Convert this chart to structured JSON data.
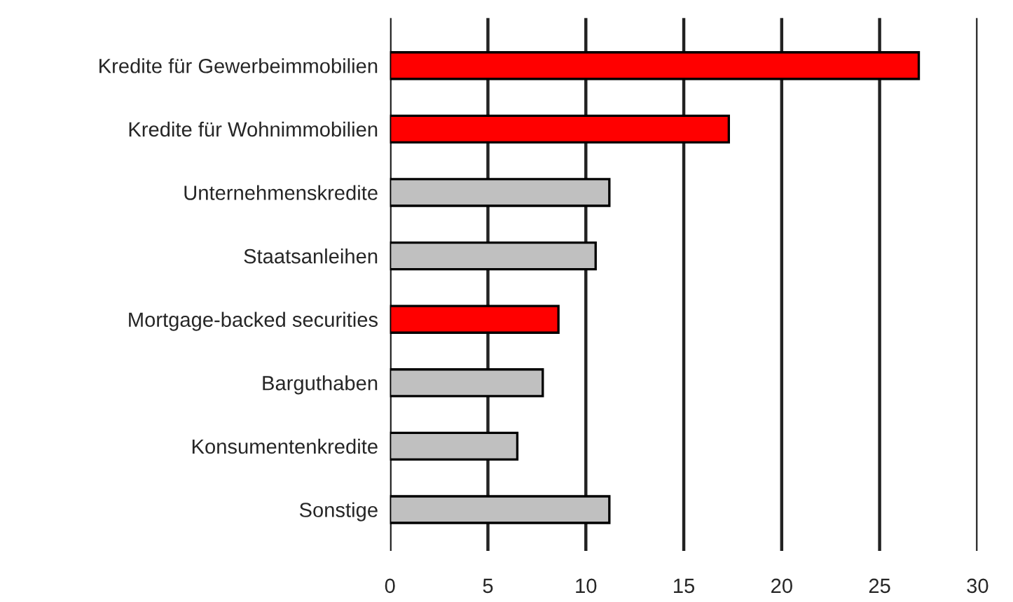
{
  "chart_data": {
    "type": "bar",
    "orientation": "horizontal",
    "categories": [
      "Kredite für Gewerbeimmobilien",
      "Kredite für Wohnimmobilien",
      "Unternehmenskredite",
      "Staatsanleihen",
      "Mortgage-backed securities",
      "Barguthaben",
      "Konsumentenkredite",
      "Sonstige"
    ],
    "values": [
      27.0,
      17.3,
      11.2,
      10.5,
      8.6,
      7.8,
      6.5,
      11.2
    ],
    "colors": [
      "#ff0000",
      "#ff0000",
      "#c0c0c0",
      "#c0c0c0",
      "#ff0000",
      "#c0c0c0",
      "#c0c0c0",
      "#c0c0c0"
    ],
    "xlim": [
      0,
      30
    ],
    "xticks": [
      0,
      5,
      10,
      15,
      20,
      25,
      30
    ],
    "grid": "x"
  }
}
